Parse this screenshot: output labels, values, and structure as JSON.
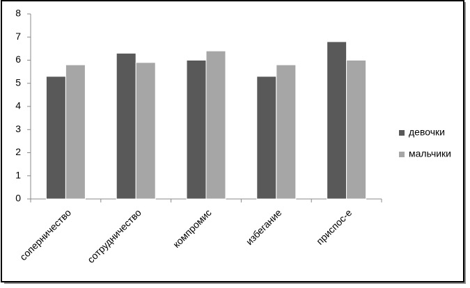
{
  "chart_data": {
    "type": "bar",
    "categories": [
      "соперничество",
      "сотрудничество",
      "компромис",
      "избегание",
      "приспос-е"
    ],
    "series": [
      {
        "name": "девочки",
        "color": "#595959",
        "values": [
          5.3,
          6.3,
          6.0,
          5.3,
          6.8
        ]
      },
      {
        "name": "мальчики",
        "color": "#a6a6a6",
        "values": [
          5.8,
          5.9,
          6.4,
          5.8,
          6.0
        ]
      }
    ],
    "ylim": [
      0,
      8
    ],
    "yticks": [
      0,
      1,
      2,
      3,
      4,
      5,
      6,
      7,
      8
    ],
    "grid": false,
    "legend": "right"
  }
}
